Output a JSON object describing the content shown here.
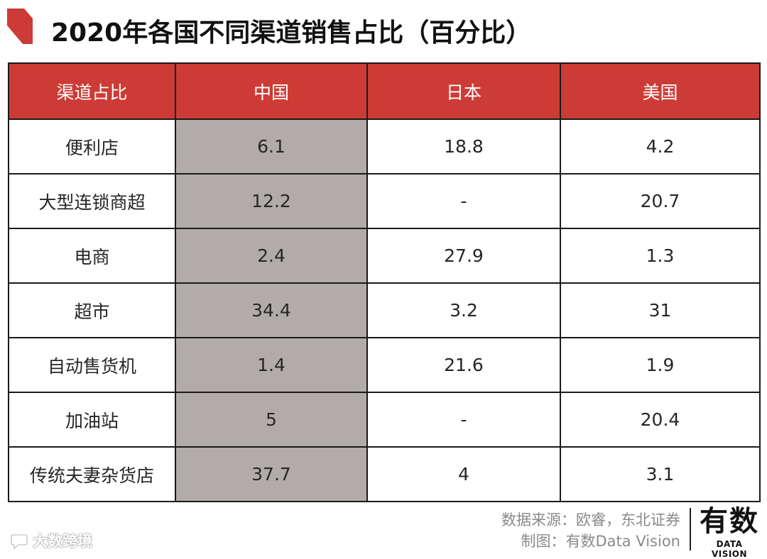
{
  "title": "2020年各国不同渠道销售占比（百分比）",
  "colors": {
    "header_bg": "#cd3b36",
    "highlight_column_bg": "#b1acaa",
    "accent_mark": "#cd3b36"
  },
  "table": {
    "headers": [
      "渠道占比",
      "中国",
      "日本",
      "美国"
    ],
    "highlight_column": 1,
    "rows": [
      [
        "便利店",
        "6.1",
        "18.8",
        "4.2"
      ],
      [
        "大型连锁商超",
        "12.2",
        "-",
        "20.7"
      ],
      [
        "电商",
        "2.4",
        "27.9",
        "1.3"
      ],
      [
        "超市",
        "34.4",
        "3.2",
        "31"
      ],
      [
        "自动售货机",
        "1.4",
        "21.6",
        "1.9"
      ],
      [
        "加油站",
        "5",
        "-",
        "20.4"
      ],
      [
        "传统夫妻杂货店",
        "37.7",
        "4",
        "3.1"
      ]
    ]
  },
  "chart_data": {
    "type": "table",
    "title": "2020年各国不同渠道销售占比（百分比）",
    "columns": [
      "渠道占比",
      "中国",
      "日本",
      "美国"
    ],
    "categories": [
      "便利店",
      "大型连锁商超",
      "电商",
      "超市",
      "自动售货机",
      "加油站",
      "传统夫妻杂货店"
    ],
    "series": [
      {
        "name": "中国",
        "values": [
          6.1,
          12.2,
          2.4,
          34.4,
          1.4,
          5,
          37.7
        ]
      },
      {
        "name": "日本",
        "values": [
          18.8,
          null,
          27.9,
          3.2,
          21.6,
          null,
          4
        ]
      },
      {
        "name": "美国",
        "values": [
          4.2,
          20.7,
          1.3,
          31,
          1.9,
          20.4,
          3.1
        ]
      }
    ]
  },
  "footer": {
    "source": "数据来源：欧睿，东北证券",
    "maker": "制图：有数Data Vision",
    "logo_main": "有数",
    "logo_sub": "DATA VISION"
  },
  "watermark": {
    "text": "大数跨境",
    "icon": "chat-bubble-icon"
  }
}
